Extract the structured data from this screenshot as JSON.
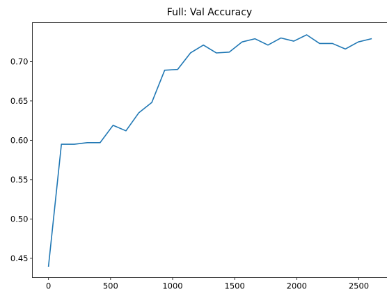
{
  "chart_data": {
    "type": "line",
    "title": "Full: Val Accuracy",
    "xlabel": "",
    "ylabel": "",
    "xlim": [
      -130,
      2730
    ],
    "ylim": [
      0.4255,
      0.7495
    ],
    "x_ticks": [
      {
        "value": 0,
        "label": "0"
      },
      {
        "value": 500,
        "label": "500"
      },
      {
        "value": 1000,
        "label": "1000"
      },
      {
        "value": 1500,
        "label": "1500"
      },
      {
        "value": 2000,
        "label": "2000"
      },
      {
        "value": 2500,
        "label": "2500"
      }
    ],
    "y_ticks": [
      {
        "value": 0.45,
        "label": "0.45"
      },
      {
        "value": 0.5,
        "label": "0.50"
      },
      {
        "value": 0.55,
        "label": "0.55"
      },
      {
        "value": 0.6,
        "label": "0.60"
      },
      {
        "value": 0.65,
        "label": "0.65"
      },
      {
        "value": 0.7,
        "label": "0.70"
      }
    ],
    "grid": false,
    "legend": "none",
    "line_color": "#1f77b4",
    "series": [
      {
        "x": [
          0,
          104,
          208,
          312,
          416,
          520,
          624,
          728,
          832,
          936,
          1040,
          1144,
          1248,
          1352,
          1456,
          1560,
          1664,
          1768,
          1872,
          1976,
          2080,
          2184,
          2288,
          2392,
          2496,
          2600
        ],
        "y": [
          0.44,
          0.595,
          0.595,
          0.597,
          0.597,
          0.619,
          0.612,
          0.635,
          0.648,
          0.689,
          0.69,
          0.711,
          0.721,
          0.711,
          0.712,
          0.725,
          0.729,
          0.721,
          0.73,
          0.726,
          0.734,
          0.723,
          0.723,
          0.716,
          0.725,
          0.729
        ]
      }
    ]
  }
}
